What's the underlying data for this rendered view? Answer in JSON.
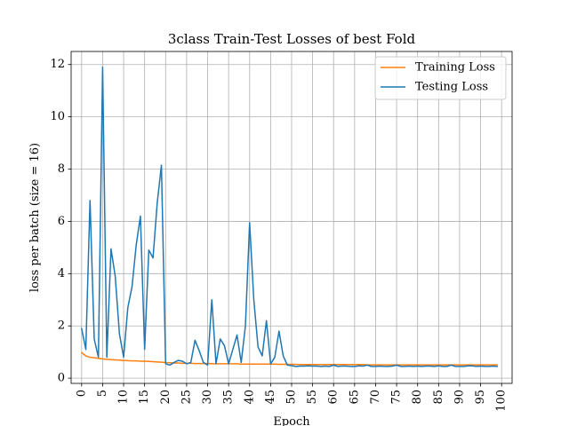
{
  "chart_data": {
    "type": "line",
    "title": "3class Train-Test Losses of best Fold",
    "xlabel": "Epoch",
    "ylabel": "loss per batch (size = 16)",
    "xlim": [
      -2.5,
      102.5
    ],
    "ylim": [
      -0.2,
      12.5
    ],
    "xticks": [
      0,
      5,
      10,
      15,
      20,
      25,
      30,
      35,
      40,
      45,
      50,
      55,
      60,
      65,
      70,
      75,
      80,
      85,
      90,
      95,
      100
    ],
    "yticks": [
      0,
      2,
      4,
      6,
      8,
      10,
      12
    ],
    "grid": true,
    "legend_position": "top-right",
    "series": [
      {
        "name": "Training Loss",
        "color": "#ff7f0e",
        "x": [
          0,
          1,
          2,
          3,
          4,
          5,
          6,
          7,
          8,
          9,
          10,
          11,
          12,
          13,
          14,
          15,
          16,
          17,
          18,
          19,
          20,
          21,
          22,
          23,
          24,
          25,
          26,
          27,
          28,
          29,
          30,
          31,
          32,
          33,
          34,
          35,
          36,
          37,
          38,
          39,
          40,
          41,
          42,
          43,
          44,
          45,
          46,
          47,
          48,
          49,
          50,
          51,
          52,
          53,
          54,
          55,
          56,
          57,
          58,
          59,
          60,
          61,
          62,
          63,
          64,
          65,
          66,
          67,
          68,
          69,
          70,
          71,
          72,
          73,
          74,
          75,
          76,
          77,
          78,
          79,
          80,
          81,
          82,
          83,
          84,
          85,
          86,
          87,
          88,
          89,
          90,
          91,
          92,
          93,
          94,
          95,
          96,
          97,
          98,
          99
        ],
        "values": [
          0.98,
          0.85,
          0.8,
          0.78,
          0.76,
          0.74,
          0.72,
          0.71,
          0.7,
          0.69,
          0.68,
          0.67,
          0.66,
          0.66,
          0.65,
          0.65,
          0.64,
          0.63,
          0.62,
          0.61,
          0.6,
          0.59,
          0.58,
          0.58,
          0.57,
          0.57,
          0.57,
          0.56,
          0.56,
          0.56,
          0.56,
          0.55,
          0.55,
          0.55,
          0.55,
          0.55,
          0.55,
          0.55,
          0.54,
          0.54,
          0.54,
          0.54,
          0.54,
          0.54,
          0.54,
          0.54,
          0.54,
          0.53,
          0.53,
          0.53,
          0.53,
          0.53,
          0.52,
          0.52,
          0.52,
          0.52,
          0.52,
          0.52,
          0.52,
          0.52,
          0.52,
          0.52,
          0.52,
          0.52,
          0.52,
          0.52,
          0.52,
          0.52,
          0.51,
          0.51,
          0.51,
          0.51,
          0.51,
          0.51,
          0.51,
          0.51,
          0.51,
          0.51,
          0.51,
          0.51,
          0.51,
          0.51,
          0.51,
          0.51,
          0.51,
          0.51,
          0.51,
          0.51,
          0.51,
          0.51,
          0.51,
          0.51,
          0.51,
          0.51,
          0.51,
          0.51,
          0.51,
          0.51,
          0.51,
          0.51
        ]
      },
      {
        "name": "Testing Loss",
        "color": "#1f77b4",
        "x": [
          0,
          1,
          2,
          3,
          4,
          5,
          6,
          7,
          8,
          9,
          10,
          11,
          12,
          13,
          14,
          15,
          16,
          17,
          18,
          19,
          20,
          21,
          22,
          23,
          24,
          25,
          26,
          27,
          28,
          29,
          30,
          31,
          32,
          33,
          34,
          35,
          36,
          37,
          38,
          39,
          40,
          41,
          42,
          43,
          44,
          45,
          46,
          47,
          48,
          49,
          50,
          51,
          52,
          53,
          54,
          55,
          56,
          57,
          58,
          59,
          60,
          61,
          62,
          63,
          64,
          65,
          66,
          67,
          68,
          69,
          70,
          71,
          72,
          73,
          74,
          75,
          76,
          77,
          78,
          79,
          80,
          81,
          82,
          83,
          84,
          85,
          86,
          87,
          88,
          89,
          90,
          91,
          92,
          93,
          94,
          95,
          96,
          97,
          98,
          99
        ],
        "values": [
          1.9,
          1.1,
          6.8,
          1.5,
          0.8,
          11.9,
          0.8,
          4.95,
          3.9,
          1.7,
          0.8,
          2.7,
          3.5,
          5.1,
          6.2,
          1.1,
          4.9,
          4.6,
          6.7,
          8.15,
          0.55,
          0.5,
          0.6,
          0.68,
          0.65,
          0.55,
          0.6,
          1.45,
          1.05,
          0.6,
          0.5,
          3.0,
          0.55,
          1.5,
          1.25,
          0.55,
          1.1,
          1.65,
          0.6,
          2.0,
          5.95,
          3.0,
          1.2,
          0.85,
          2.2,
          0.55,
          0.8,
          1.8,
          0.85,
          0.5,
          0.48,
          0.45,
          0.46,
          0.46,
          0.47,
          0.46,
          0.46,
          0.45,
          0.46,
          0.45,
          0.5,
          0.45,
          0.46,
          0.46,
          0.45,
          0.45,
          0.47,
          0.46,
          0.5,
          0.45,
          0.45,
          0.46,
          0.45,
          0.45,
          0.46,
          0.5,
          0.45,
          0.45,
          0.46,
          0.45,
          0.46,
          0.45,
          0.46,
          0.46,
          0.45,
          0.47,
          0.45,
          0.45,
          0.5,
          0.45,
          0.45,
          0.45,
          0.47,
          0.47,
          0.45,
          0.46,
          0.45,
          0.45,
          0.46,
          0.45
        ]
      }
    ]
  }
}
